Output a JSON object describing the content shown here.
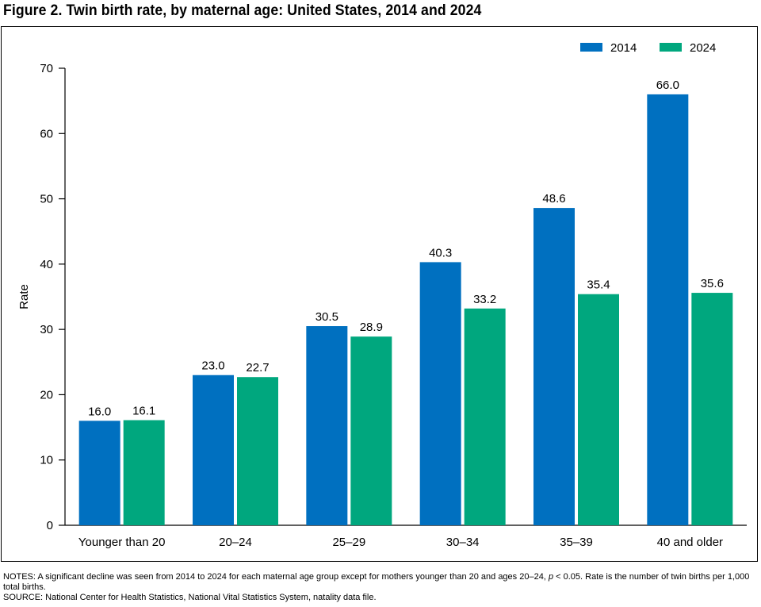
{
  "figure": {
    "title": "Figure 2. Twin birth rate, by maternal age: United States, 2014 and 2024"
  },
  "notes": {
    "notes_prefix": "NOTES: A significant decline was seen from 2014 to 2024 for each maternal age group except for mothers younger than 20 and ages 20–24, ",
    "notes_p": "p",
    "notes_suffix": " < 0.05. Rate is the number of twin births per 1,000 total births.",
    "source": "SOURCE: National Center for Health Statistics, National Vital Statistics System, natality data file."
  },
  "colors": {
    "series_2014": "#0070c0",
    "series_2024": "#00a77e",
    "axis": "#000000"
  },
  "chart_data": {
    "type": "bar",
    "title": "Figure 2. Twin birth rate, by maternal age: United States, 2014 and 2024",
    "xlabel": "",
    "ylabel": "Rate",
    "ylim": [
      0,
      70
    ],
    "yticks": [
      0,
      10,
      20,
      30,
      40,
      50,
      60,
      70
    ],
    "grid": false,
    "legend_position": "top-right",
    "categories": [
      "Younger than 20",
      "20–24",
      "25–29",
      "30–34",
      "35–39",
      "40 and older"
    ],
    "series": [
      {
        "name": "2014",
        "values": [
          16.0,
          23.0,
          30.5,
          40.3,
          48.6,
          66.0
        ],
        "labels": [
          "16.0",
          "23.0",
          "30.5",
          "40.3",
          "48.6",
          "66.0"
        ]
      },
      {
        "name": "2024",
        "values": [
          16.1,
          22.7,
          28.9,
          33.2,
          35.4,
          35.6
        ],
        "labels": [
          "16.1",
          "22.7",
          "28.9",
          "33.2",
          "35.4",
          "35.6"
        ]
      }
    ]
  }
}
